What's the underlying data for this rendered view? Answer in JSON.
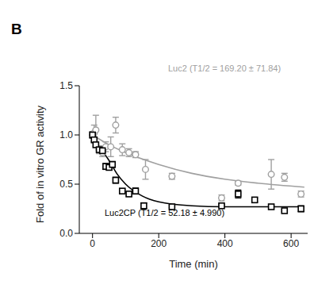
{
  "chart_data": {
    "type": "scatter",
    "panel_label": "B",
    "x_label": "Time (min)",
    "y_label": "Fold of in vitro GR activity",
    "xlim": [
      -40,
      650
    ],
    "xticks": [
      0,
      200,
      400,
      600
    ],
    "ylim": [
      0,
      1.5
    ],
    "yticks": [
      {
        "value": 0,
        "label": "0.0"
      },
      {
        "value": 0.5,
        "label": "0.5"
      },
      {
        "value": 1,
        "label": "1.0"
      },
      {
        "value": 1.5,
        "label": "1.5"
      }
    ],
    "annotations": [
      {
        "text": "Luc2 (T1/2 = 169.20 ± 71.84)",
        "color": "#a0a0a0"
      },
      {
        "text": "Luc2CP (T1/2 = 52.18 ± 4.990)",
        "color": "#000000"
      }
    ],
    "series": [
      {
        "name": "Luc2",
        "color": "#a0a0a0",
        "marker": "circle",
        "x": [
          0,
          5,
          10,
          20,
          30,
          40,
          55,
          70,
          90,
          110,
          130,
          160,
          240,
          390,
          440,
          540,
          580,
          630
        ],
        "values": [
          1.0,
          1.02,
          1.05,
          0.85,
          0.82,
          0.88,
          0.88,
          1.1,
          0.85,
          0.82,
          0.8,
          0.65,
          0.58,
          0.36,
          0.51,
          0.6,
          0.57,
          0.4
        ],
        "errors": [
          0.03,
          0.08,
          0.15,
          0.04,
          0.04,
          0.05,
          0.1,
          0.08,
          0.06,
          0.04,
          0.03,
          0.1,
          0.03,
          0.03,
          0.02,
          0.15,
          0.04,
          0.03
        ],
        "fit": {
          "x": [
            0,
            50,
            100,
            200,
            300,
            400,
            500,
            640
          ],
          "values": [
            1.0,
            0.9,
            0.82,
            0.7,
            0.61,
            0.55,
            0.51,
            0.47
          ]
        }
      },
      {
        "name": "Luc2CP",
        "color": "#000000",
        "marker": "square",
        "x": [
          0,
          5,
          10,
          20,
          30,
          40,
          50,
          60,
          70,
          90,
          110,
          130,
          155,
          240,
          390,
          440,
          490,
          540,
          580,
          630
        ],
        "values": [
          1.0,
          0.95,
          0.9,
          0.85,
          0.84,
          0.68,
          0.67,
          0.7,
          0.54,
          0.43,
          0.4,
          0.43,
          0.28,
          0.27,
          0.28,
          0.4,
          0.34,
          0.27,
          0.23,
          0.25
        ],
        "errors": [
          0.03,
          0.02,
          0.02,
          0.02,
          0.02,
          0.03,
          0.02,
          0.03,
          0.03,
          0.02,
          0.02,
          0.03,
          0.03,
          0.01,
          0.01,
          0.04,
          0.02,
          0.02,
          0.01,
          0.03
        ],
        "fit": {
          "x": [
            0,
            25,
            50,
            75,
            100,
            150,
            200,
            300,
            400,
            640
          ],
          "values": [
            1.0,
            0.86,
            0.74,
            0.6,
            0.5,
            0.38,
            0.32,
            0.28,
            0.27,
            0.27
          ]
        }
      }
    ]
  }
}
